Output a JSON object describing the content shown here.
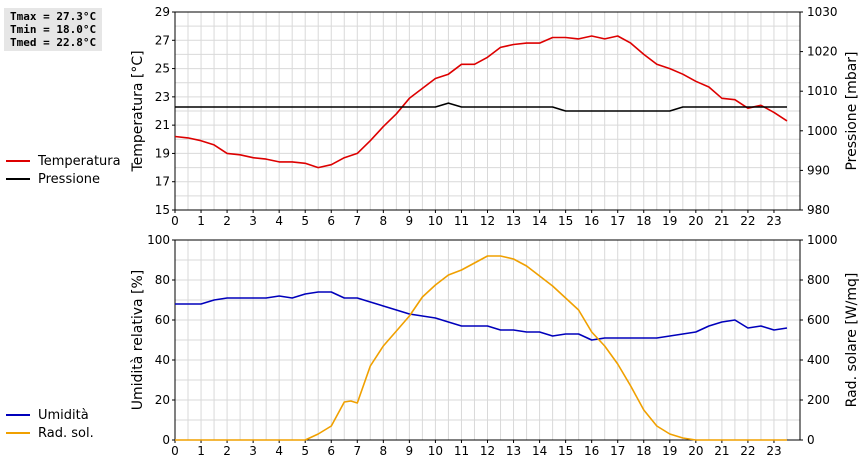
{
  "stats": {
    "tmax": "Tmax = 27.3°C",
    "tmin": "Tmin = 18.0°C",
    "tmed": "Tmed = 22.8°C"
  },
  "legend_top": [
    {
      "label": "Temperatura",
      "color": "#dd0000"
    },
    {
      "label": "Pressione",
      "color": "#000000"
    }
  ],
  "legend_bottom": [
    {
      "label": "Umidità",
      "color": "#0000bb"
    },
    {
      "label": "Rad. sol.",
      "color": "#f0a000"
    }
  ],
  "chart_data": [
    {
      "type": "line",
      "ylabel": "Temperatura [°C]",
      "y2label": "Pressione [mbar]",
      "ylim": [
        15,
        29
      ],
      "y2lim": [
        980,
        1030
      ],
      "yticks": [
        15,
        17,
        19,
        21,
        23,
        25,
        27,
        29
      ],
      "y2ticks": [
        980,
        990,
        1000,
        1010,
        1020,
        1030
      ],
      "xlim": [
        0,
        24
      ],
      "xticks": [
        0,
        1,
        2,
        3,
        4,
        5,
        6,
        7,
        8,
        9,
        10,
        11,
        12,
        13,
        14,
        15,
        16,
        17,
        18,
        19,
        20,
        21,
        22,
        23
      ],
      "grid": true,
      "legend": "left",
      "series": [
        {
          "name": "Temperatura",
          "axis": "left",
          "color": "#dd0000",
          "x": [
            0,
            0.5,
            1,
            1.5,
            2,
            2.5,
            3,
            3.5,
            4,
            4.5,
            5,
            5.5,
            6,
            6.5,
            7,
            7.5,
            8,
            8.5,
            9,
            9.5,
            10,
            10.5,
            11,
            11.5,
            12,
            12.5,
            13,
            13.5,
            14,
            14.5,
            15,
            15.5,
            16,
            16.5,
            17,
            17.5,
            18,
            18.5,
            19,
            19.5,
            20,
            20.5,
            21,
            21.5,
            22,
            22.5,
            23,
            23.5
          ],
          "values": [
            20.2,
            20.1,
            19.9,
            19.6,
            19.0,
            18.9,
            18.7,
            18.6,
            18.4,
            18.4,
            18.3,
            18.0,
            18.2,
            18.7,
            19.0,
            19.9,
            20.9,
            21.8,
            22.9,
            23.6,
            24.3,
            24.6,
            25.3,
            25.3,
            25.8,
            26.5,
            26.7,
            26.8,
            26.8,
            27.2,
            27.2,
            27.1,
            27.3,
            27.1,
            27.3,
            26.8,
            26.0,
            25.3,
            25.0,
            24.6,
            24.1,
            23.7,
            22.9,
            22.8,
            22.2,
            22.4,
            21.9,
            21.3
          ]
        },
        {
          "name": "Pressione",
          "axis": "right",
          "color": "#000000",
          "x": [
            0,
            10,
            10.5,
            11,
            14.5,
            15,
            19,
            19.5,
            23.5
          ],
          "values": [
            1006,
            1006,
            1007,
            1006,
            1006,
            1005,
            1005,
            1006,
            1006
          ]
        }
      ]
    },
    {
      "type": "line",
      "ylabel": "Umidità relativa [%]",
      "y2label": "Rad. solare [W/mq]",
      "ylim": [
        0,
        100
      ],
      "y2lim": [
        0,
        1000
      ],
      "yticks": [
        0,
        20,
        40,
        60,
        80,
        100
      ],
      "y2ticks": [
        0,
        200,
        400,
        600,
        800,
        1000
      ],
      "xlim": [
        0,
        24
      ],
      "xticks": [
        0,
        1,
        2,
        3,
        4,
        5,
        6,
        7,
        8,
        9,
        10,
        11,
        12,
        13,
        14,
        15,
        16,
        17,
        18,
        19,
        20,
        21,
        22,
        23
      ],
      "grid": true,
      "legend": "left",
      "series": [
        {
          "name": "Umidità",
          "axis": "left",
          "color": "#0000bb",
          "x": [
            0,
            0.5,
            1,
            1.5,
            2,
            2.5,
            3,
            3.5,
            4,
            4.5,
            5,
            5.5,
            6,
            6.5,
            7,
            7.5,
            8,
            8.5,
            9,
            9.5,
            10,
            10.5,
            11,
            11.5,
            12,
            12.5,
            13,
            13.5,
            14,
            14.5,
            15,
            15.5,
            16,
            16.5,
            17,
            17.5,
            18,
            18.5,
            19,
            19.5,
            20,
            20.5,
            21,
            21.5,
            22,
            22.5,
            23,
            23.5
          ],
          "values": [
            68,
            68,
            68,
            70,
            71,
            71,
            71,
            71,
            72,
            71,
            73,
            74,
            74,
            71,
            71,
            69,
            67,
            65,
            63,
            62,
            61,
            59,
            57,
            57,
            57,
            55,
            55,
            54,
            54,
            52,
            53,
            53,
            50,
            51,
            51,
            51,
            51,
            51,
            52,
            53,
            54,
            57,
            59,
            60,
            56,
            57,
            55,
            56
          ]
        },
        {
          "name": "Rad. sol.",
          "axis": "right",
          "color": "#f0a000",
          "x": [
            0,
            5,
            5.5,
            6,
            6.5,
            6.75,
            7,
            7.5,
            8,
            8.5,
            9,
            9.5,
            10,
            10.5,
            11,
            11.5,
            12,
            12.5,
            13,
            13.5,
            14,
            14.5,
            15,
            15.5,
            16,
            16.5,
            17,
            17.5,
            18,
            18.5,
            19,
            19.5,
            20,
            20.5,
            21,
            23.5
          ],
          "values": [
            0,
            0,
            30,
            70,
            190,
            195,
            185,
            370,
            470,
            545,
            620,
            715,
            775,
            825,
            850,
            885,
            920,
            920,
            905,
            870,
            820,
            770,
            710,
            650,
            540,
            470,
            380,
            270,
            150,
            70,
            30,
            10,
            0,
            0,
            0,
            0
          ]
        }
      ]
    }
  ]
}
